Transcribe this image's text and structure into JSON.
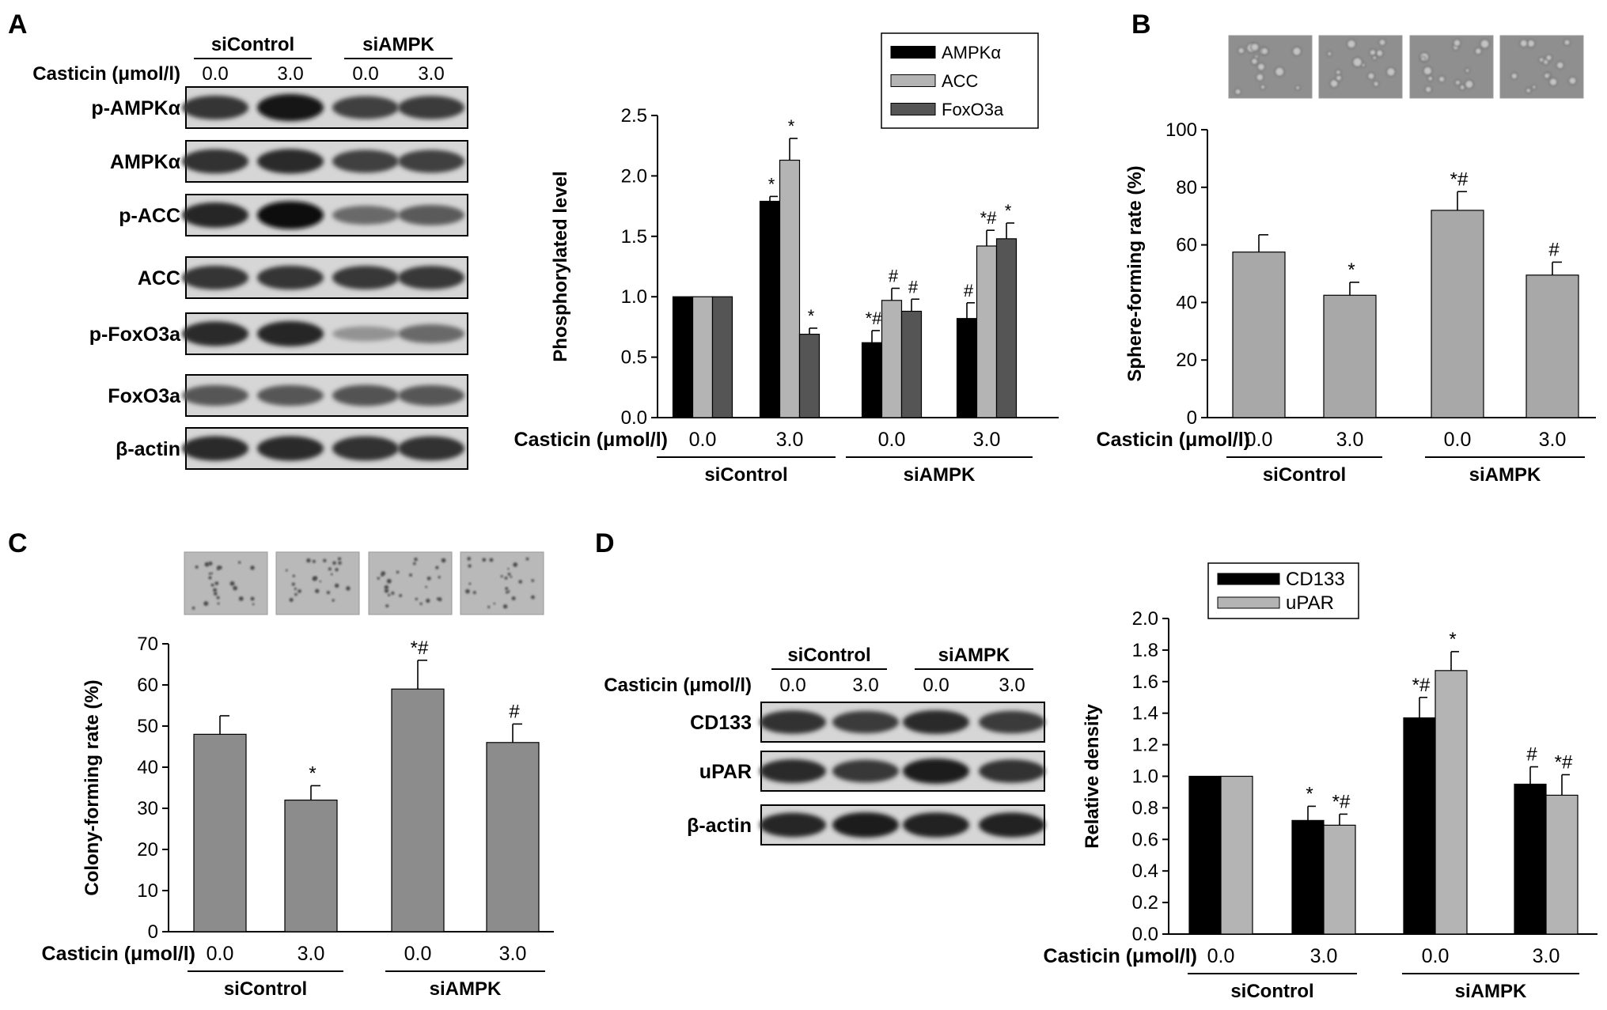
{
  "labels": {
    "casticin": "Casticin (μmol/l)",
    "group1": "siControl",
    "group2": "siAMPK"
  },
  "panels": {
    "A": {
      "letter": "A",
      "blot": {
        "groups": [
          "siControl",
          "siAMPK"
        ],
        "treatment": "Casticin (μmol/l)",
        "doses": [
          "0.0",
          "3.0",
          "0.0",
          "3.0"
        ],
        "rows": [
          {
            "label": "p-AMPKα",
            "intensity": [
              0.78,
              0.95,
              0.72,
              0.74
            ]
          },
          {
            "label": "AMPKα",
            "intensity": [
              0.8,
              0.82,
              0.72,
              0.72
            ]
          },
          {
            "label": "p-ACC",
            "intensity": [
              0.85,
              1.0,
              0.5,
              0.58
            ]
          },
          {
            "label": "ACC",
            "intensity": [
              0.78,
              0.78,
              0.76,
              0.76
            ]
          },
          {
            "label": "p-FoxO3a",
            "intensity": [
              0.82,
              0.85,
              0.28,
              0.5
            ]
          },
          {
            "label": "FoxO3a",
            "intensity": [
              0.6,
              0.6,
              0.62,
              0.6
            ]
          },
          {
            "label": "β-actin",
            "intensity": [
              0.82,
              0.82,
              0.8,
              0.8
            ]
          }
        ]
      }
    },
    "B": {
      "letter": "B",
      "micrograph_style": "spheres"
    },
    "C": {
      "letter": "C",
      "micrograph_style": "colonies"
    },
    "D": {
      "letter": "D",
      "blot": {
        "groups": [
          "siControl",
          "siAMPK"
        ],
        "treatment": "Casticin (μmol/l)",
        "doses": [
          "0.0",
          "3.0",
          "0.0",
          "3.0"
        ],
        "rows": [
          {
            "label": "CD133",
            "intensity": [
              0.8,
              0.74,
              0.82,
              0.75
            ]
          },
          {
            "label": "uPAR",
            "intensity": [
              0.82,
              0.76,
              0.9,
              0.8
            ]
          },
          {
            "label": "β-actin",
            "intensity": [
              0.85,
              0.9,
              0.88,
              0.87
            ]
          }
        ]
      }
    }
  },
  "colors": {
    "black": "#000000",
    "light_gray": "#b4b4b4",
    "dark_gray": "#555555",
    "mid_gray": "#a8a8a8",
    "c_gray": "#8c8c8c"
  },
  "chart_data": [
    {
      "id": "A",
      "type": "bar",
      "categories": [
        "0.0",
        "3.0",
        "0.0",
        "3.0"
      ],
      "groups": [
        "siControl",
        "siAMPK"
      ],
      "xlabel": "Casticin (μmol/l)",
      "ylabel": "Phosphorylated level",
      "ylim": [
        0,
        2.5
      ],
      "yticks": [
        0.0,
        0.5,
        1.0,
        1.5,
        2.0,
        2.5
      ],
      "legend": "top-right",
      "series": [
        {
          "name": "AMPKα",
          "color": "#000000",
          "values": [
            1.0,
            1.79,
            0.62,
            0.82
          ],
          "errors": [
            0,
            0.04,
            0.1,
            0.13
          ],
          "annotations": [
            "",
            "*",
            "*#",
            "#"
          ]
        },
        {
          "name": "ACC",
          "color": "#b4b4b4",
          "values": [
            1.0,
            2.13,
            0.97,
            1.42
          ],
          "errors": [
            0,
            0.18,
            0.1,
            0.13
          ],
          "annotations": [
            "",
            "*",
            "#",
            "*#"
          ]
        },
        {
          "name": "FoxO3a",
          "color": "#555555",
          "values": [
            1.0,
            0.69,
            0.88,
            1.48
          ],
          "errors": [
            0,
            0.05,
            0.1,
            0.13
          ],
          "annotations": [
            "",
            "*",
            "#",
            "*"
          ]
        }
      ]
    },
    {
      "id": "B",
      "type": "bar",
      "categories": [
        "0.0",
        "3.0",
        "0.0",
        "3.0"
      ],
      "groups": [
        "siControl",
        "siAMPK"
      ],
      "xlabel": "Casticin (μmol/l)",
      "ylabel": "Sphere-forming rate (%)",
      "ylim": [
        0,
        100
      ],
      "yticks": [
        0,
        20,
        40,
        60,
        80,
        100
      ],
      "series": [
        {
          "color": "#a8a8a8",
          "values": [
            57.5,
            42.5,
            72.0,
            49.5
          ],
          "errors": [
            6,
            4.5,
            6.5,
            4.5
          ],
          "annotations": [
            "",
            "*",
            "*#",
            "#"
          ]
        }
      ]
    },
    {
      "id": "C",
      "type": "bar",
      "categories": [
        "0.0",
        "3.0",
        "0.0",
        "3.0"
      ],
      "groups": [
        "siControl",
        "siAMPK"
      ],
      "xlabel": "Casticin (μmol/l)",
      "ylabel": "Colony-forming rate (%)",
      "ylim": [
        0,
        70
      ],
      "yticks": [
        0,
        10,
        20,
        30,
        40,
        50,
        60,
        70
      ],
      "series": [
        {
          "color": "#8c8c8c",
          "values": [
            48.0,
            32.0,
            59.0,
            46.0
          ],
          "errors": [
            4.5,
            3.5,
            7,
            4.5
          ],
          "annotations": [
            "",
            "*",
            "*#",
            "#"
          ]
        }
      ]
    },
    {
      "id": "D",
      "type": "bar",
      "categories": [
        "0.0",
        "3.0",
        "0.0",
        "3.0"
      ],
      "groups": [
        "siControl",
        "siAMPK"
      ],
      "xlabel": "Casticin (μmol/l)",
      "ylabel": "Relative density",
      "ylim": [
        0,
        2.0
      ],
      "yticks": [
        0.0,
        0.2,
        0.4,
        0.6,
        0.8,
        1.0,
        1.2,
        1.4,
        1.6,
        1.8,
        2.0
      ],
      "legend": "top-left",
      "series": [
        {
          "name": "CD133",
          "color": "#000000",
          "values": [
            1.0,
            0.72,
            1.37,
            0.95
          ],
          "errors": [
            0,
            0.09,
            0.13,
            0.11
          ],
          "annotations": [
            "",
            "*",
            "*#",
            "#"
          ]
        },
        {
          "name": "uPAR",
          "color": "#b4b4b4",
          "values": [
            1.0,
            0.69,
            1.67,
            0.88
          ],
          "errors": [
            0,
            0.07,
            0.12,
            0.13
          ],
          "annotations": [
            "",
            "*#",
            "*",
            "*#"
          ]
        }
      ]
    }
  ]
}
